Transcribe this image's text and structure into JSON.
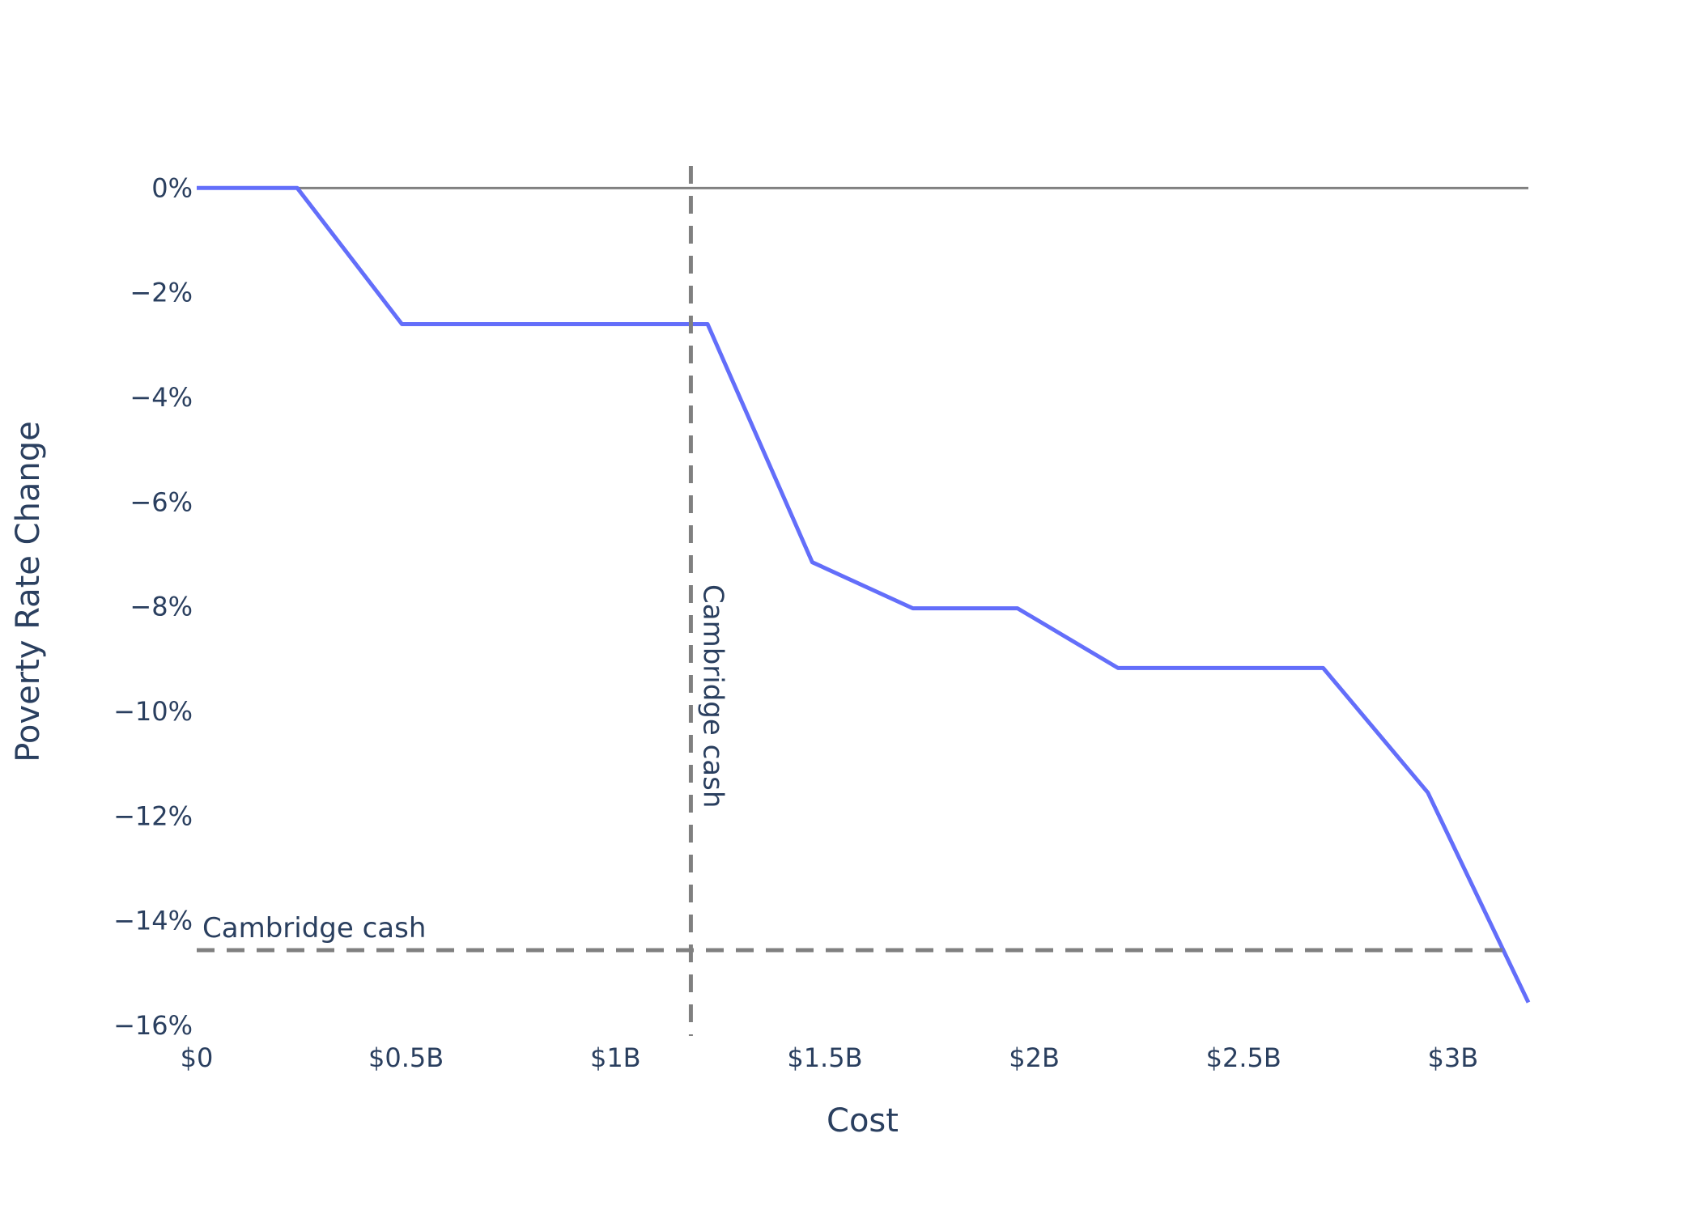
{
  "chart_data": {
    "type": "line",
    "title": "",
    "xlabel": "Cost",
    "ylabel": "Poverty Rate Change",
    "x_unit": "USD",
    "y_unit": "percent",
    "xlim": [
      0,
      3180000000
    ],
    "ylim": [
      -16.2,
      0.5
    ],
    "x_ticks": [
      {
        "value": 0,
        "label": "$0"
      },
      {
        "value": 500000000,
        "label": "$0.5B"
      },
      {
        "value": 1000000000,
        "label": "$1B"
      },
      {
        "value": 1500000000,
        "label": "$1.5B"
      },
      {
        "value": 2000000000,
        "label": "$2B"
      },
      {
        "value": 2500000000,
        "label": "$2.5B"
      },
      {
        "value": 3000000000,
        "label": "$3B"
      }
    ],
    "y_ticks": [
      {
        "value": 0,
        "label": "0%"
      },
      {
        "value": -2,
        "label": "−2%"
      },
      {
        "value": -4,
        "label": "−4%"
      },
      {
        "value": -6,
        "label": "−6%"
      },
      {
        "value": -8,
        "label": "−8%"
      },
      {
        "value": -10,
        "label": "−10%"
      },
      {
        "value": -12,
        "label": "−12%"
      },
      {
        "value": -14,
        "label": "−14%"
      },
      {
        "value": -16,
        "label": "−16%"
      }
    ],
    "grid": false,
    "legend": "none",
    "series": [
      {
        "color": "#636efa",
        "x": [
          0,
          240000000,
          490000000,
          1220000000,
          1470000000,
          1710000000,
          1960000000,
          2200000000,
          2690000000,
          2940000000,
          3180000000
        ],
        "y": [
          0,
          0,
          -2.6,
          -2.6,
          -7.15,
          -8.03,
          -8.03,
          -9.17,
          -9.17,
          -11.55,
          -15.56
        ]
      }
    ],
    "reference_lines": {
      "zero_line": {
        "y": 0,
        "color": "#808080"
      },
      "vertical": {
        "x": 1180000000,
        "label": "Cambridge cash",
        "color": "#808080",
        "dash": "dashed"
      },
      "horizontal": {
        "y": -14.56,
        "label": "Cambridge cash",
        "color": "#808080",
        "dash": "dashed"
      }
    }
  }
}
